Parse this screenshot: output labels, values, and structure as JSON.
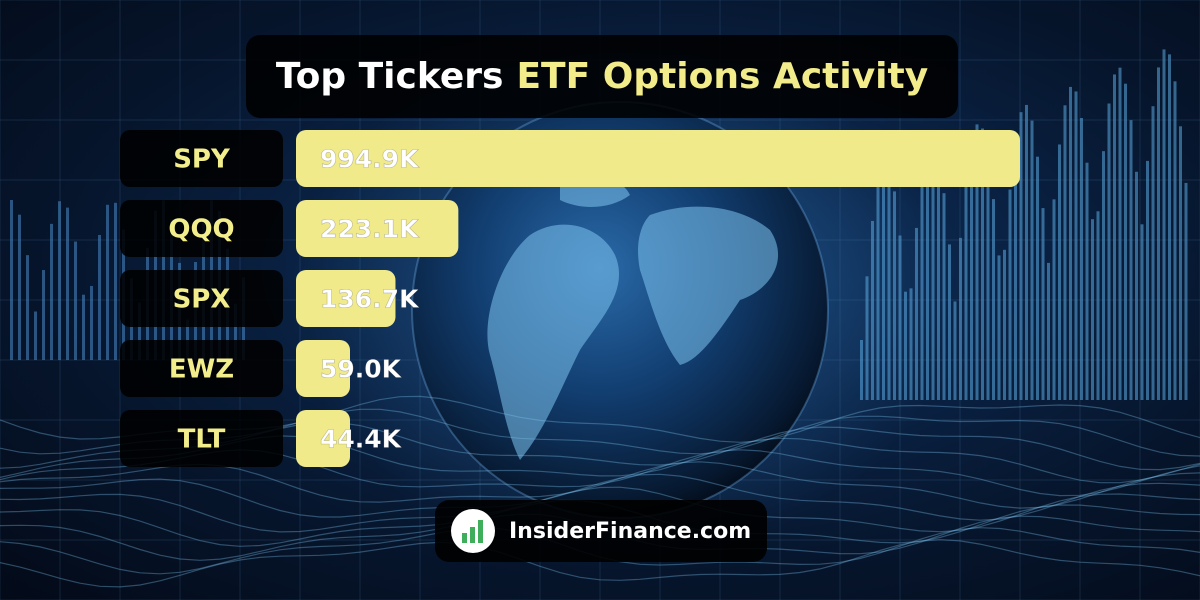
{
  "title": {
    "main": "Top Tickers",
    "highlight": "ETF Options Activity"
  },
  "chart_data": {
    "type": "bar",
    "orientation": "horizontal",
    "title": "Top Tickers ETF Options Activity",
    "categories": [
      "SPY",
      "QQQ",
      "SPX",
      "EWZ",
      "TLT"
    ],
    "values": [
      994900,
      223100,
      136700,
      59000,
      44400
    ],
    "labels": [
      "994.9K",
      "223.1K",
      "136.7K",
      "59.0K",
      "44.4K"
    ],
    "bar_color": "#f0ea8a",
    "label_color": "#f3ee8c",
    "grid": false,
    "legend": "none"
  },
  "brand": {
    "name": "InsiderFinance.com",
    "logo": "chart-bars-logo"
  }
}
